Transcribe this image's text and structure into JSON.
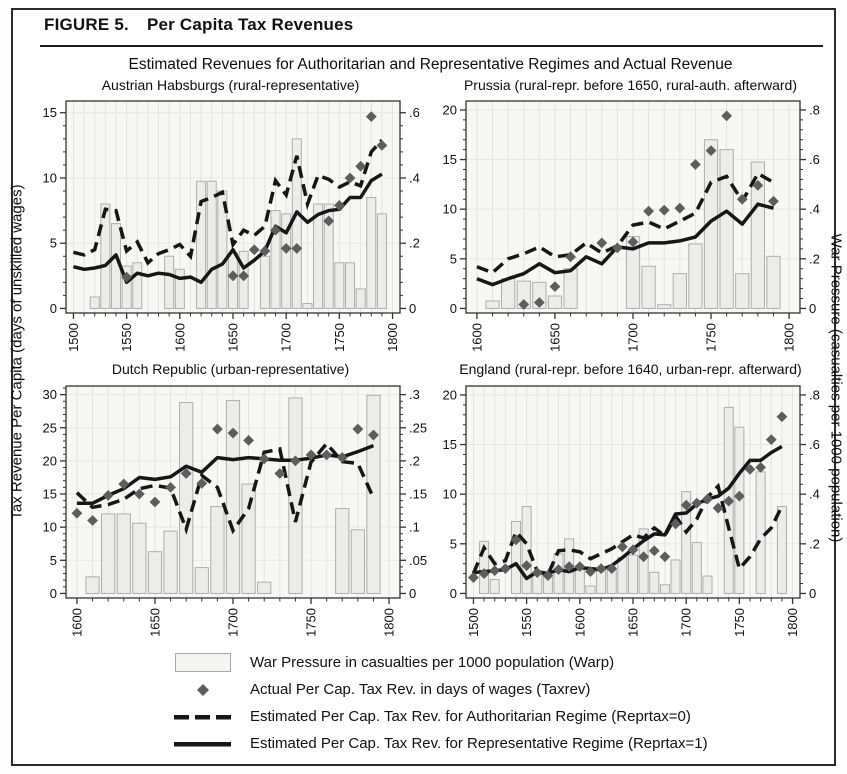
{
  "figure": {
    "label": "FIGURE 5.",
    "title": "Per Capita Tax Revenues",
    "subtitle": "Estimated Revenues for Authoritarian and Representative Regimes and Actual Revenue",
    "left_axis_label": "Tax Revenue Per Capita (days of unskilled wages)",
    "right_axis_label": "War Pressure (casualties per 1000 population)"
  },
  "legend": {
    "items": [
      {
        "marker": "war-pressure-bar",
        "label": "War Pressure in casualties per 1000 population (Warp)"
      },
      {
        "marker": "actual-diamond",
        "label": "Actual Per Cap. Tax Rev. in days of wages (Taxrev)"
      },
      {
        "marker": "authoritarian-dashed-line",
        "label": "Estimated Per Cap. Tax Rev. for Authoritarian Regime (Reprtax=0)"
      },
      {
        "marker": "representative-solid-line",
        "label": "Estimated Per Cap. Tax Rev. for Representative Regime (Reprtax=1)"
      }
    ]
  },
  "colors": {
    "plot_bg": "#f7f7f6",
    "grid_v": "#e2e2e2",
    "grid_h": "#e7e7e7",
    "bar_fill": "#ececeb",
    "bar_stroke": "#aeaeae",
    "line": "#161616",
    "diamond": "#5c5d5d",
    "axis": "#333333"
  },
  "chart_data": [
    {
      "type": "combo",
      "title": "Austrian Habsburgs (rural-representative)",
      "x_min": 1500,
      "x_max": 1800,
      "left_ticks": [
        0,
        5,
        10,
        15
      ],
      "right_ticks": [
        "0",
        ".2",
        ".4",
        ".6"
      ],
      "right_tick_vals": [
        0,
        0.2,
        0.4,
        0.6
      ],
      "left_plot_max": 15.9,
      "left_ylim": [
        0,
        15
      ],
      "right_ylim": [
        0,
        0.6
      ],
      "years": [
        1500,
        1510,
        1520,
        1530,
        1540,
        1550,
        1560,
        1570,
        1580,
        1590,
        1600,
        1610,
        1620,
        1630,
        1640,
        1650,
        1660,
        1670,
        1680,
        1690,
        1700,
        1710,
        1720,
        1730,
        1740,
        1750,
        1760,
        1770,
        1780,
        1790
      ],
      "warp": [
        0,
        0,
        0.035,
        0.32,
        0.26,
        0.13,
        0.14,
        0,
        0,
        0.16,
        0.12,
        0,
        0.39,
        0.39,
        0.36,
        0.17,
        0.175,
        0,
        0.16,
        0.3,
        0.29,
        0.52,
        0.015,
        0.32,
        0.32,
        0.14,
        0.14,
        0.06,
        0.34,
        0.29
      ],
      "taxrev": [
        null,
        null,
        null,
        null,
        null,
        2.4,
        null,
        null,
        null,
        null,
        null,
        null,
        null,
        null,
        null,
        2.5,
        2.5,
        4.5,
        4.4,
        6.0,
        4.6,
        4.6,
        null,
        null,
        6.7,
        7.9,
        10.0,
        10.9,
        14.7,
        12.5
      ],
      "authoritarian": [
        4.3,
        4.1,
        4.5,
        7.6,
        7.5,
        4.4,
        5.1,
        3.5,
        4.2,
        4.5,
        4.9,
        4.0,
        8.2,
        8.5,
        8.9,
        4.9,
        6.0,
        5.6,
        6.3,
        9.8,
        8.7,
        11.7,
        8.0,
        10.2,
        9.9,
        9.3,
        9.7,
        9.4,
        12.0,
        12.9
      ],
      "representative": [
        3.2,
        3.0,
        3.1,
        3.3,
        4.1,
        2.0,
        2.7,
        2.5,
        2.7,
        2.6,
        2.3,
        2.4,
        2.0,
        3.0,
        3.4,
        4.5,
        3.1,
        3.7,
        4.4,
        6.3,
        5.8,
        7.4,
        6.6,
        7.2,
        7.5,
        7.6,
        8.5,
        8.5,
        9.8,
        10.3
      ]
    },
    {
      "type": "combo",
      "title": "Prussia (rural-repr. before 1650, rural-auth. afterward)",
      "x_min": 1600,
      "x_max": 1800,
      "left_ticks": [
        0,
        5,
        10,
        15,
        20
      ],
      "right_ticks": [
        "0",
        ".2",
        ".4",
        ".6",
        ".8"
      ],
      "right_tick_vals": [
        0,
        0.2,
        0.4,
        0.6,
        0.8
      ],
      "left_plot_max": 20.9,
      "left_ylim": [
        0,
        20
      ],
      "right_ylim": [
        0,
        0.8
      ],
      "years": [
        1600,
        1610,
        1620,
        1630,
        1640,
        1650,
        1660,
        1670,
        1680,
        1690,
        1700,
        1710,
        1720,
        1730,
        1740,
        1750,
        1760,
        1770,
        1780,
        1790
      ],
      "warp": [
        0,
        0.03,
        0.12,
        0.11,
        0.105,
        0.05,
        0.16,
        0,
        0,
        0,
        0.29,
        0.17,
        0.015,
        0.14,
        0.26,
        0.68,
        0.64,
        0.14,
        0.59,
        0.21
      ],
      "taxrev": [
        null,
        null,
        null,
        0.4,
        0.6,
        2.2,
        5.2,
        null,
        6.6,
        6.1,
        6.7,
        9.8,
        9.9,
        10.1,
        14.5,
        15.9,
        19.4,
        11.0,
        12.4,
        10.8
      ],
      "authoritarian": [
        4.2,
        3.6,
        5.0,
        5.5,
        6.2,
        5.2,
        5.4,
        6.6,
        5.6,
        6.3,
        8.4,
        8.7,
        8.0,
        8.8,
        9.6,
        12.7,
        13.3,
        10.8,
        13.6,
        12.7
      ],
      "representative": [
        3.0,
        2.4,
        3.0,
        3.5,
        4.5,
        3.6,
        3.8,
        5.2,
        4.5,
        6.2,
        6.0,
        6.6,
        6.6,
        6.8,
        7.2,
        8.8,
        9.8,
        8.5,
        10.5,
        10.1
      ]
    },
    {
      "type": "combo",
      "title": "Dutch Republic (urban-representative)",
      "x_min": 1600,
      "x_max": 1800,
      "left_ticks": [
        0,
        5,
        10,
        15,
        20,
        25,
        30
      ],
      "right_ticks": [
        "0",
        ".05",
        ".1",
        ".15",
        ".2",
        ".25",
        ".3"
      ],
      "right_tick_vals": [
        0,
        0.05,
        0.1,
        0.15,
        0.2,
        0.25,
        0.3
      ],
      "left_plot_max": 31.3,
      "left_ylim": [
        0,
        30
      ],
      "right_ylim": [
        0,
        0.3
      ],
      "years": [
        1600,
        1610,
        1620,
        1630,
        1640,
        1650,
        1660,
        1670,
        1680,
        1690,
        1700,
        1710,
        1720,
        1730,
        1740,
        1750,
        1760,
        1770,
        1780,
        1790
      ],
      "warp": [
        0,
        0.025,
        0.12,
        0.12,
        0.106,
        0.063,
        0.094,
        0.288,
        0.039,
        0.131,
        0.291,
        0.165,
        0.017,
        0,
        0.295,
        0,
        0,
        0.128,
        0.096,
        0.299
      ],
      "taxrev": [
        12.1,
        11.0,
        14.8,
        16.5,
        15.0,
        13.8,
        16.0,
        18.1,
        16.6,
        24.8,
        24.2,
        23.1,
        20.3,
        18.1,
        20.0,
        20.9,
        20.9,
        20.5,
        24.8,
        23.9
      ],
      "authoritarian": [
        15.2,
        13.0,
        13.4,
        14.2,
        15.8,
        16.3,
        15.9,
        9.7,
        17.8,
        16.0,
        9.5,
        12.8,
        21.3,
        21.8,
        10.8,
        19.8,
        22.6,
        19.9,
        19.6,
        14.4
      ],
      "representative": [
        13.6,
        13.6,
        14.8,
        15.8,
        17.5,
        17.2,
        17.6,
        19.2,
        18.3,
        20.5,
        20.2,
        20.5,
        20.3,
        20.1,
        20.1,
        20.4,
        20.9,
        20.6,
        21.4,
        22.3
      ]
    },
    {
      "type": "combo",
      "title": "England (rural-repr. before 1640, urban-repr. afterward)",
      "x_min": 1500,
      "x_max": 1800,
      "left_ticks": [
        0,
        5,
        10,
        15,
        20
      ],
      "right_ticks": [
        "0",
        ".2",
        ".4",
        ".6",
        ".8"
      ],
      "right_tick_vals": [
        0,
        0.2,
        0.4,
        0.6,
        0.8
      ],
      "left_plot_max": 20.9,
      "left_ylim": [
        0,
        20
      ],
      "right_ylim": [
        0,
        0.8
      ],
      "years": [
        1500,
        1510,
        1520,
        1530,
        1540,
        1550,
        1560,
        1570,
        1580,
        1590,
        1600,
        1610,
        1620,
        1630,
        1640,
        1650,
        1660,
        1670,
        1680,
        1690,
        1700,
        1710,
        1720,
        1730,
        1740,
        1750,
        1760,
        1770,
        1780,
        1790
      ],
      "warp": [
        0,
        0.21,
        0.056,
        0,
        0.29,
        0.35,
        0.08,
        0.07,
        0.16,
        0.22,
        0.1,
        0.03,
        0.09,
        0.095,
        0.145,
        0.155,
        0.26,
        0.085,
        0.035,
        0.135,
        0.41,
        0.205,
        0.07,
        0,
        0.75,
        0.67,
        0,
        0.49,
        0,
        0.35
      ],
      "taxrev": [
        1.6,
        2.0,
        2.3,
        2.5,
        5.4,
        2.8,
        2.1,
        1.8,
        2.4,
        2.7,
        2.7,
        2.2,
        2.5,
        2.5,
        4.7,
        4.4,
        3.7,
        4.3,
        3.7,
        7.0,
        8.9,
        9.1,
        9.5,
        8.6,
        9.3,
        9.8,
        12.5,
        12.7,
        15.5,
        17.8
      ],
      "authoritarian": [
        2.0,
        4.6,
        3.0,
        3.3,
        6.2,
        5.0,
        2.2,
        1.9,
        4.3,
        4.4,
        4.2,
        3.5,
        4.0,
        4.5,
        5.2,
        5.9,
        5.6,
        6.6,
        5.8,
        7.8,
        6.2,
        7.5,
        9.7,
        10.8,
        6.6,
        2.5,
        3.7,
        5.5,
        6.6,
        8.8
      ],
      "representative": [
        2.1,
        2.2,
        2.3,
        2.4,
        3.0,
        1.5,
        2.2,
        2.0,
        2.4,
        2.2,
        2.6,
        2.5,
        2.4,
        2.8,
        3.6,
        4.5,
        5.3,
        6.0,
        5.9,
        8.0,
        8.1,
        9.0,
        9.5,
        9.8,
        10.6,
        12.1,
        13.4,
        13.4,
        14.2,
        14.8
      ]
    }
  ]
}
